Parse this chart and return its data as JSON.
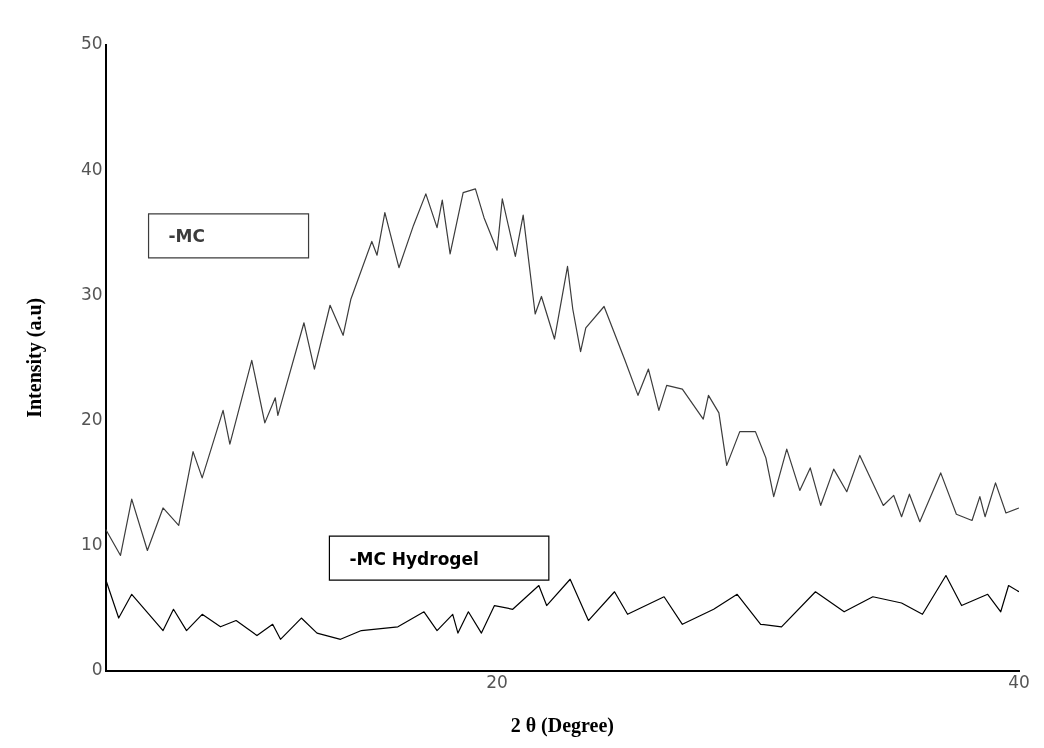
{
  "chart_data": {
    "type": "line",
    "xlabel": "2 θ (Degree)",
    "ylabel": "Intensity (a.u)",
    "xlim": [
      5,
      40
    ],
    "xticks": [
      20,
      40
    ],
    "ylim": [
      0,
      50
    ],
    "yticks": [
      0,
      10,
      20,
      30,
      40,
      50
    ],
    "marker": "none",
    "line_style": "solid",
    "series": [
      {
        "name": "-MC",
        "color": "#3c3c3c",
        "x": [
          5,
          5.57,
          6.0,
          6.6,
          7.2,
          7.8,
          8.35,
          8.7,
          9.5,
          9.76,
          10.6,
          11.1,
          11.5,
          11.6,
          12.6,
          13.0,
          13.6,
          14.1,
          14.4,
          15.2,
          15.4,
          15.7,
          16.24,
          16.8,
          17.27,
          17.7,
          17.9,
          18.2,
          18.7,
          19.17,
          19.5,
          20.0,
          20.2,
          20.7,
          21.0,
          21.46,
          21.7,
          22.2,
          22.7,
          22.9,
          23.2,
          23.4,
          24.1,
          24.9,
          25.4,
          25.8,
          26.2,
          26.5,
          27.1,
          27.9,
          28.1,
          28.5,
          28.8,
          29.3,
          29.9,
          30.3,
          30.6,
          31.1,
          31.6,
          32.0,
          32.4,
          32.9,
          33.4,
          33.9,
          34.8,
          35.2,
          35.5,
          35.8,
          36.2,
          37.0,
          37.6,
          38.2,
          38.5,
          38.7,
          39.1,
          39.5,
          40
        ],
        "values": [
          11.3,
          9.2,
          13.7,
          9.6,
          13.0,
          11.6,
          17.5,
          15.4,
          20.8,
          18.1,
          24.8,
          19.8,
          21.8,
          20.4,
          27.8,
          24.1,
          29.2,
          26.8,
          29.7,
          34.3,
          33.2,
          36.6,
          32.2,
          35.6,
          38.1,
          35.4,
          37.6,
          33.3,
          38.2,
          38.5,
          36.2,
          33.6,
          37.7,
          33.1,
          36.4,
          28.5,
          29.9,
          26.5,
          32.3,
          28.9,
          25.5,
          27.4,
          29.1,
          24.8,
          22.0,
          24.1,
          20.8,
          22.8,
          22.5,
          20.1,
          22.0,
          20.6,
          16.4,
          19.1,
          19.1,
          17.0,
          13.9,
          17.7,
          14.4,
          16.2,
          13.2,
          16.1,
          14.3,
          17.2,
          13.2,
          14.0,
          12.3,
          14.1,
          11.9,
          15.8,
          12.5,
          12.0,
          13.9,
          12.3,
          15.0,
          12.6,
          13.0
        ]
      },
      {
        "name": "-MC Hydrogel",
        "color": "#000000",
        "x": [
          5.0,
          5.5,
          6.0,
          7.2,
          7.6,
          8.1,
          8.7,
          9.4,
          10.0,
          10.8,
          11.4,
          11.7,
          12.5,
          13.1,
          14.0,
          14.8,
          16.2,
          17.2,
          17.7,
          18.3,
          18.5,
          18.9,
          19.4,
          19.9,
          20.6,
          21.6,
          21.9,
          22.8,
          23.5,
          24.5,
          25.0,
          26.4,
          27.1,
          28.3,
          29.2,
          30.1,
          30.9,
          32.2,
          33.3,
          34.4,
          35.5,
          36.3,
          37.2,
          37.8,
          38.8,
          39.3,
          39.6,
          40
        ],
        "values": [
          7.3,
          4.2,
          6.1,
          3.2,
          4.9,
          3.2,
          4.5,
          3.5,
          4.0,
          2.8,
          3.7,
          2.5,
          4.2,
          3.0,
          2.5,
          3.2,
          3.5,
          4.7,
          3.2,
          4.5,
          3.0,
          4.7,
          3.0,
          5.2,
          4.9,
          6.8,
          5.2,
          7.3,
          4.0,
          6.3,
          4.5,
          5.9,
          3.7,
          4.9,
          6.1,
          3.7,
          3.5,
          6.3,
          4.7,
          5.9,
          5.4,
          4.5,
          7.6,
          5.2,
          6.1,
          4.7,
          6.8,
          6.3
        ]
      }
    ]
  }
}
